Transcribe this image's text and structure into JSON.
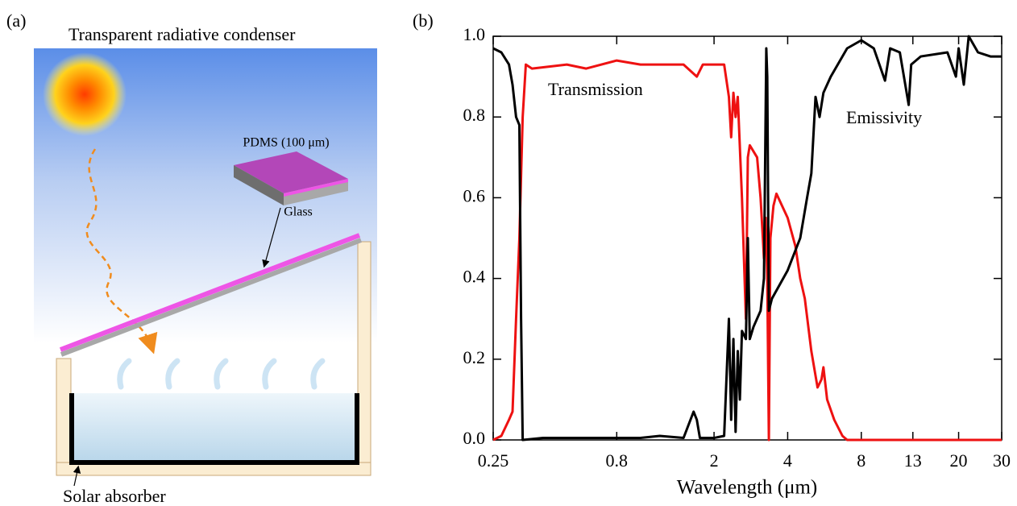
{
  "diagram": {
    "label": "(a)",
    "title": "Transparent radiative condenser",
    "pdms": "PDMS (100 μm)",
    "glass": "Glass",
    "absorber": "Solar absorber"
  },
  "chart_data": {
    "label": "(b)",
    "type": "line",
    "xlabel": "Wavelength (μm)",
    "xscale": "log",
    "xlim": [
      0.25,
      30
    ],
    "xticks": [
      0.25,
      0.8,
      2,
      4,
      8,
      13,
      20,
      30
    ],
    "ylim": [
      0,
      1
    ],
    "yticks": [
      {
        "value": 0,
        "label": "0.0"
      },
      0.2,
      0.4,
      0.6,
      0.8,
      {
        "value": 1,
        "label": "1.0"
      }
    ],
    "series": [
      {
        "name": "Transmission",
        "color": "#ee1111",
        "x": [
          0.25,
          0.27,
          0.29,
          0.3,
          0.31,
          0.32,
          0.33,
          0.34,
          0.36,
          0.5,
          0.6,
          0.8,
          1.0,
          1.2,
          1.5,
          1.7,
          1.8,
          2.0,
          2.2,
          2.3,
          2.35,
          2.4,
          2.45,
          2.5,
          2.6,
          2.7,
          2.75,
          2.8,
          3.0,
          3.1,
          3.2,
          3.25,
          3.3,
          3.35,
          3.4,
          3.5,
          3.6,
          4.0,
          4.3,
          4.5,
          4.7,
          5.0,
          5.3,
          5.5,
          5.6,
          5.8,
          6.2,
          6.7,
          7.0,
          10,
          30
        ],
        "values": [
          0,
          0.01,
          0.05,
          0.07,
          0.3,
          0.5,
          0.8,
          0.93,
          0.92,
          0.93,
          0.92,
          0.94,
          0.93,
          0.93,
          0.93,
          0.9,
          0.93,
          0.93,
          0.93,
          0.85,
          0.75,
          0.86,
          0.8,
          0.85,
          0.6,
          0.3,
          0.7,
          0.73,
          0.7,
          0.6,
          0.45,
          0.55,
          0.4,
          0,
          0.5,
          0.58,
          0.61,
          0.55,
          0.48,
          0.4,
          0.35,
          0.22,
          0.13,
          0.15,
          0.18,
          0.1,
          0.05,
          0.01,
          0,
          0,
          0
        ]
      },
      {
        "name": "Emissivity",
        "color": "#000000",
        "x": [
          0.25,
          0.27,
          0.29,
          0.3,
          0.31,
          0.32,
          0.325,
          0.33,
          0.4,
          1.0,
          1.2,
          1.5,
          1.65,
          1.7,
          1.75,
          2.0,
          2.2,
          2.3,
          2.35,
          2.4,
          2.45,
          2.5,
          2.55,
          2.6,
          2.7,
          2.75,
          2.8,
          2.9,
          3.1,
          3.2,
          3.27,
          3.3,
          3.35,
          3.45,
          4.0,
          4.5,
          4.8,
          5.0,
          5.2,
          5.4,
          5.6,
          6.0,
          7.0,
          8.0,
          9.0,
          10.0,
          10.5,
          11.5,
          12.5,
          12.8,
          14,
          18,
          19.5,
          20,
          21,
          22,
          24,
          27,
          30
        ],
        "values": [
          0.97,
          0.96,
          0.93,
          0.88,
          0.8,
          0.78,
          0.3,
          0,
          0.005,
          0.005,
          0.01,
          0.005,
          0.07,
          0.05,
          0.005,
          0.005,
          0.01,
          0.3,
          0.05,
          0.25,
          0.02,
          0.22,
          0.1,
          0.27,
          0.25,
          0.5,
          0.25,
          0.28,
          0.32,
          0.4,
          0.97,
          0.9,
          0.32,
          0.35,
          0.42,
          0.5,
          0.6,
          0.66,
          0.85,
          0.8,
          0.86,
          0.9,
          0.97,
          0.99,
          0.97,
          0.89,
          0.97,
          0.96,
          0.83,
          0.93,
          0.95,
          0.96,
          0.9,
          0.97,
          0.88,
          1.0,
          0.96,
          0.95,
          0.95
        ]
      }
    ]
  }
}
